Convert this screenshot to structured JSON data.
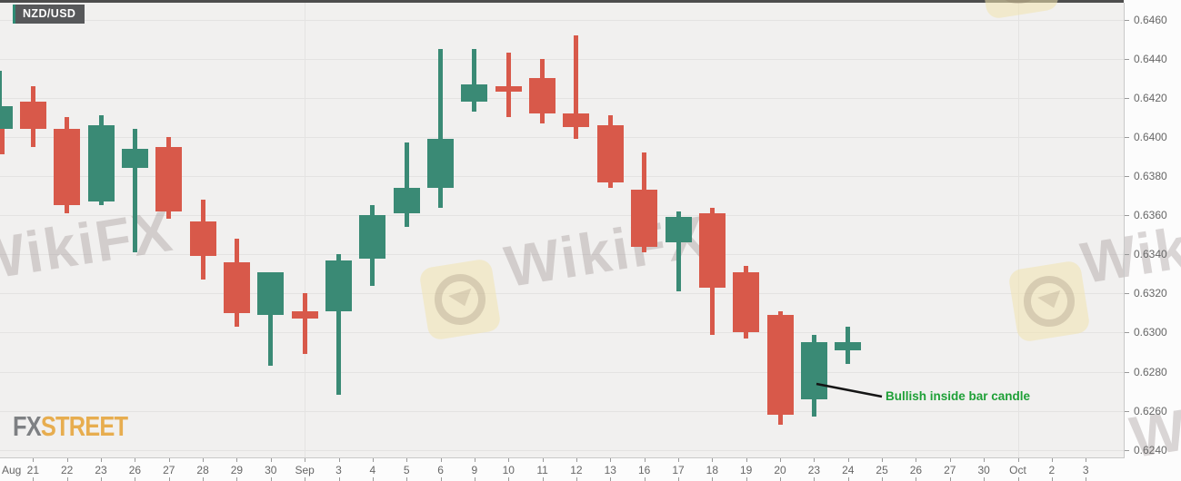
{
  "instrument_badge": {
    "label": "NZD/USD"
  },
  "annotation": {
    "text": "Bullish inside bar candle",
    "color": "#1fa037"
  },
  "logo": {
    "fx": "FX",
    "street": "STREET",
    "fx_color": "#7e8083",
    "street_color": "#e7ad4f"
  },
  "watermark": {
    "text": "WikiFX",
    "text_color": "rgba(150,138,138,0.34)",
    "tile_color": "rgba(240,228,175,0.55)"
  },
  "colors": {
    "up": "#3a8a75",
    "down": "#d8594a",
    "plot_bg": "#f1f0ef",
    "outer_bg": "#fcfcfc",
    "grid": "#e4e3e2",
    "axis_border": "#c9c9c9",
    "tick": "#999999",
    "tick_text": "#666666",
    "top_bar": "#4d4d4d",
    "badge_bg": "#57585a",
    "badge_accent": "#2e8b74",
    "annotation_line": "#151515"
  },
  "chart_data": {
    "type": "candlestick",
    "pair": "NZD/USD",
    "timeframe": "daily",
    "y_axis": {
      "side": "right",
      "min": 0.624,
      "max": 0.646,
      "tick_step": 0.002,
      "labels": [
        "0.6460",
        "0.6440",
        "0.6420",
        "0.6400",
        "0.6380",
        "0.6360",
        "0.6340",
        "0.6320",
        "0.6300",
        "0.6280",
        "0.6260",
        "0.6240"
      ]
    },
    "x_axis": {
      "labels": [
        "Aug",
        "21",
        "22",
        "23",
        "26",
        "27",
        "28",
        "29",
        "30",
        "Sep",
        "3",
        "4",
        "5",
        "6",
        "9",
        "10",
        "11",
        "12",
        "13",
        "16",
        "17",
        "18",
        "19",
        "20",
        "23",
        "24",
        "25",
        "26",
        "27",
        "30",
        "Oct",
        "2",
        "3"
      ]
    },
    "grid": {
      "horizontal": true,
      "vertical_month_labels": [
        "Sep",
        "Oct"
      ]
    },
    "candles": [
      {
        "x_label": "Aug",
        "open": 0.6404,
        "high": 0.6434,
        "low": 0.6404,
        "close": 0.6416,
        "partial": true
      },
      {
        "x_label": "21",
        "open": 0.6418,
        "high": 0.6426,
        "low": 0.6395,
        "close": 0.6404
      },
      {
        "x_label": "22",
        "open": 0.6404,
        "high": 0.641,
        "low": 0.6361,
        "close": 0.6365
      },
      {
        "x_label": "23",
        "open": 0.6367,
        "high": 0.6411,
        "low": 0.6365,
        "close": 0.6406
      },
      {
        "x_label": "26",
        "open": 0.6384,
        "high": 0.6404,
        "low": 0.6341,
        "close": 0.6394
      },
      {
        "x_label": "27",
        "open": 0.6395,
        "high": 0.64,
        "low": 0.6358,
        "close": 0.6362
      },
      {
        "x_label": "28",
        "open": 0.6357,
        "high": 0.6368,
        "low": 0.6327,
        "close": 0.6339
      },
      {
        "x_label": "29",
        "open": 0.6336,
        "high": 0.6348,
        "low": 0.6303,
        "close": 0.631
      },
      {
        "x_label": "30",
        "open": 0.6309,
        "high": 0.6331,
        "low": 0.6283,
        "close": 0.6331
      },
      {
        "x_label": "Sep",
        "open": 0.6311,
        "high": 0.632,
        "low": 0.6289,
        "close": 0.6307
      },
      {
        "x_label": "3",
        "open": 0.6311,
        "high": 0.634,
        "low": 0.6268,
        "close": 0.6337
      },
      {
        "x_label": "4",
        "open": 0.6338,
        "high": 0.6365,
        "low": 0.6324,
        "close": 0.636
      },
      {
        "x_label": "5",
        "open": 0.6361,
        "high": 0.6397,
        "low": 0.6354,
        "close": 0.6374
      },
      {
        "x_label": "6",
        "open": 0.6374,
        "high": 0.6445,
        "low": 0.6364,
        "close": 0.6399
      },
      {
        "x_label": "9",
        "open": 0.6418,
        "high": 0.6445,
        "low": 0.6413,
        "close": 0.6427
      },
      {
        "x_label": "10",
        "open": 0.6426,
        "high": 0.6443,
        "low": 0.641,
        "close": 0.6423
      },
      {
        "x_label": "11",
        "open": 0.643,
        "high": 0.644,
        "low": 0.6407,
        "close": 0.6412
      },
      {
        "x_label": "12",
        "open": 0.6412,
        "high": 0.6452,
        "low": 0.6399,
        "close": 0.6405
      },
      {
        "x_label": "13",
        "open": 0.6406,
        "high": 0.6411,
        "low": 0.6374,
        "close": 0.6377
      },
      {
        "x_label": "16",
        "open": 0.6373,
        "high": 0.6392,
        "low": 0.6341,
        "close": 0.6344
      },
      {
        "x_label": "17",
        "open": 0.6346,
        "high": 0.6362,
        "low": 0.6321,
        "close": 0.6359
      },
      {
        "x_label": "18",
        "open": 0.6361,
        "high": 0.6364,
        "low": 0.6299,
        "close": 0.6323
      },
      {
        "x_label": "19",
        "open": 0.6331,
        "high": 0.6334,
        "low": 0.6297,
        "close": 0.63
      },
      {
        "x_label": "20",
        "open": 0.6309,
        "high": 0.6311,
        "low": 0.6253,
        "close": 0.6258
      },
      {
        "x_label": "23",
        "open": 0.6266,
        "high": 0.6299,
        "low": 0.6257,
        "close": 0.6295
      },
      {
        "x_label": "24",
        "open": 0.6291,
        "high": 0.6303,
        "low": 0.6284,
        "close": 0.6295
      }
    ],
    "left_edge_fragment": {
      "top_price": 0.6404,
      "bottom_price": 0.6391
    },
    "annotated_candle_x_label": "23"
  }
}
